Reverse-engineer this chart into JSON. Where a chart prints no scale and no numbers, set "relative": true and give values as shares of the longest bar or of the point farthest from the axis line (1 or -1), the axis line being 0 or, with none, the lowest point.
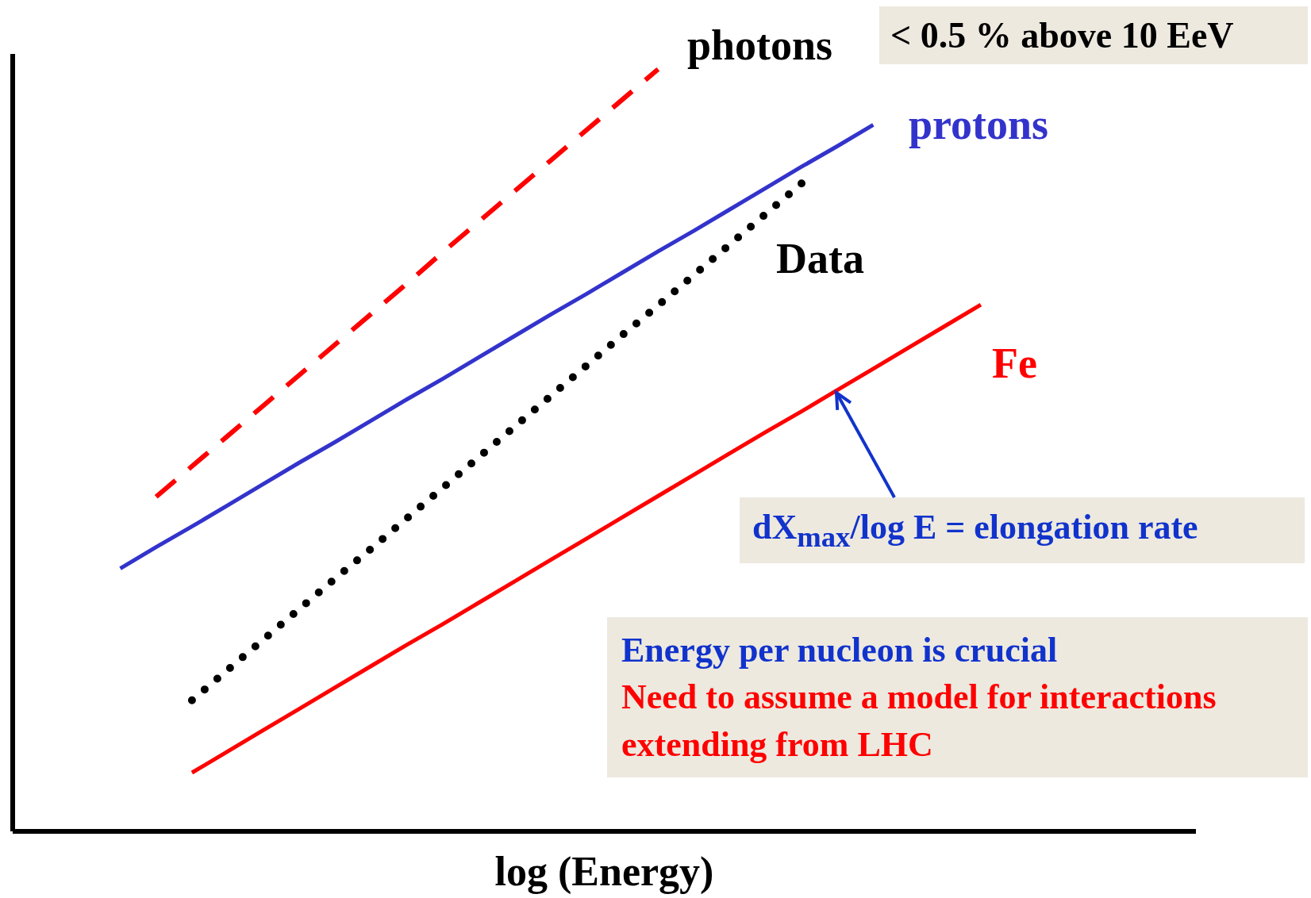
{
  "chart_data": {
    "type": "line",
    "relative": true,
    "xlabel": "log (Energy)",
    "categories": [
      null,
      null,
      null,
      null,
      null,
      null,
      null,
      null,
      null,
      null,
      null,
      null,
      null,
      null,
      null,
      null,
      null,
      null,
      null,
      null,
      null,
      null,
      null,
      null,
      null,
      null,
      null,
      null,
      null,
      null,
      null,
      null,
      null,
      null
    ],
    "series": [
      {
        "name": "photons",
        "color": "#ff0000",
        "line_style": "dashed",
        "values": [
          null,
          null,
          null,
          null,
          0.439,
          0.479,
          0.519,
          0.559,
          0.599,
          0.639,
          0.679,
          0.719,
          0.76,
          0.8,
          0.84,
          0.88,
          0.92,
          0.96,
          1.0,
          null,
          null,
          null,
          null,
          null,
          null,
          null,
          null,
          null,
          null,
          null,
          null,
          null,
          null,
          null
        ]
      },
      {
        "name": "protons",
        "color": "#3333cc",
        "line_style": "solid",
        "values": [
          null,
          null,
          null,
          0.345,
          0.373,
          0.4,
          0.428,
          0.456,
          0.484,
          0.511,
          0.539,
          0.567,
          0.594,
          0.622,
          0.65,
          0.678,
          0.705,
          0.733,
          0.761,
          0.788,
          0.816,
          0.844,
          0.872,
          0.899,
          0.927,
          null,
          null,
          null,
          null,
          null,
          null,
          null,
          null,
          null
        ]
      },
      {
        "name": "Data",
        "color": "#000000",
        "line_style": "dotted",
        "values": [
          null,
          null,
          null,
          null,
          null,
          0.172,
          0.212,
          0.252,
          0.292,
          0.332,
          0.371,
          0.411,
          0.451,
          0.491,
          0.531,
          0.571,
          0.611,
          0.651,
          0.69,
          0.73,
          0.77,
          0.81,
          0.85,
          null,
          null,
          null,
          null,
          null,
          null,
          null,
          null,
          null,
          null,
          null
        ]
      },
      {
        "name": "Fe",
        "color": "#ff0000",
        "line_style": "solid",
        "values": [
          null,
          null,
          null,
          null,
          null,
          0.077,
          0.105,
          0.133,
          0.161,
          0.189,
          0.217,
          0.245,
          0.272,
          0.3,
          0.328,
          0.356,
          0.384,
          0.412,
          0.44,
          0.468,
          0.496,
          0.524,
          0.551,
          0.579,
          0.607,
          0.635,
          0.663,
          0.691,
          null,
          null,
          null,
          null,
          null,
          null
        ]
      }
    ],
    "annotations": [
      "< 0.5 % above 10 EeV",
      "dX$_{max}$/log E = elongation rate",
      "Energy per nucleon is crucial",
      "Need to assume a model for interactions extending from LHC"
    ]
  }
}
